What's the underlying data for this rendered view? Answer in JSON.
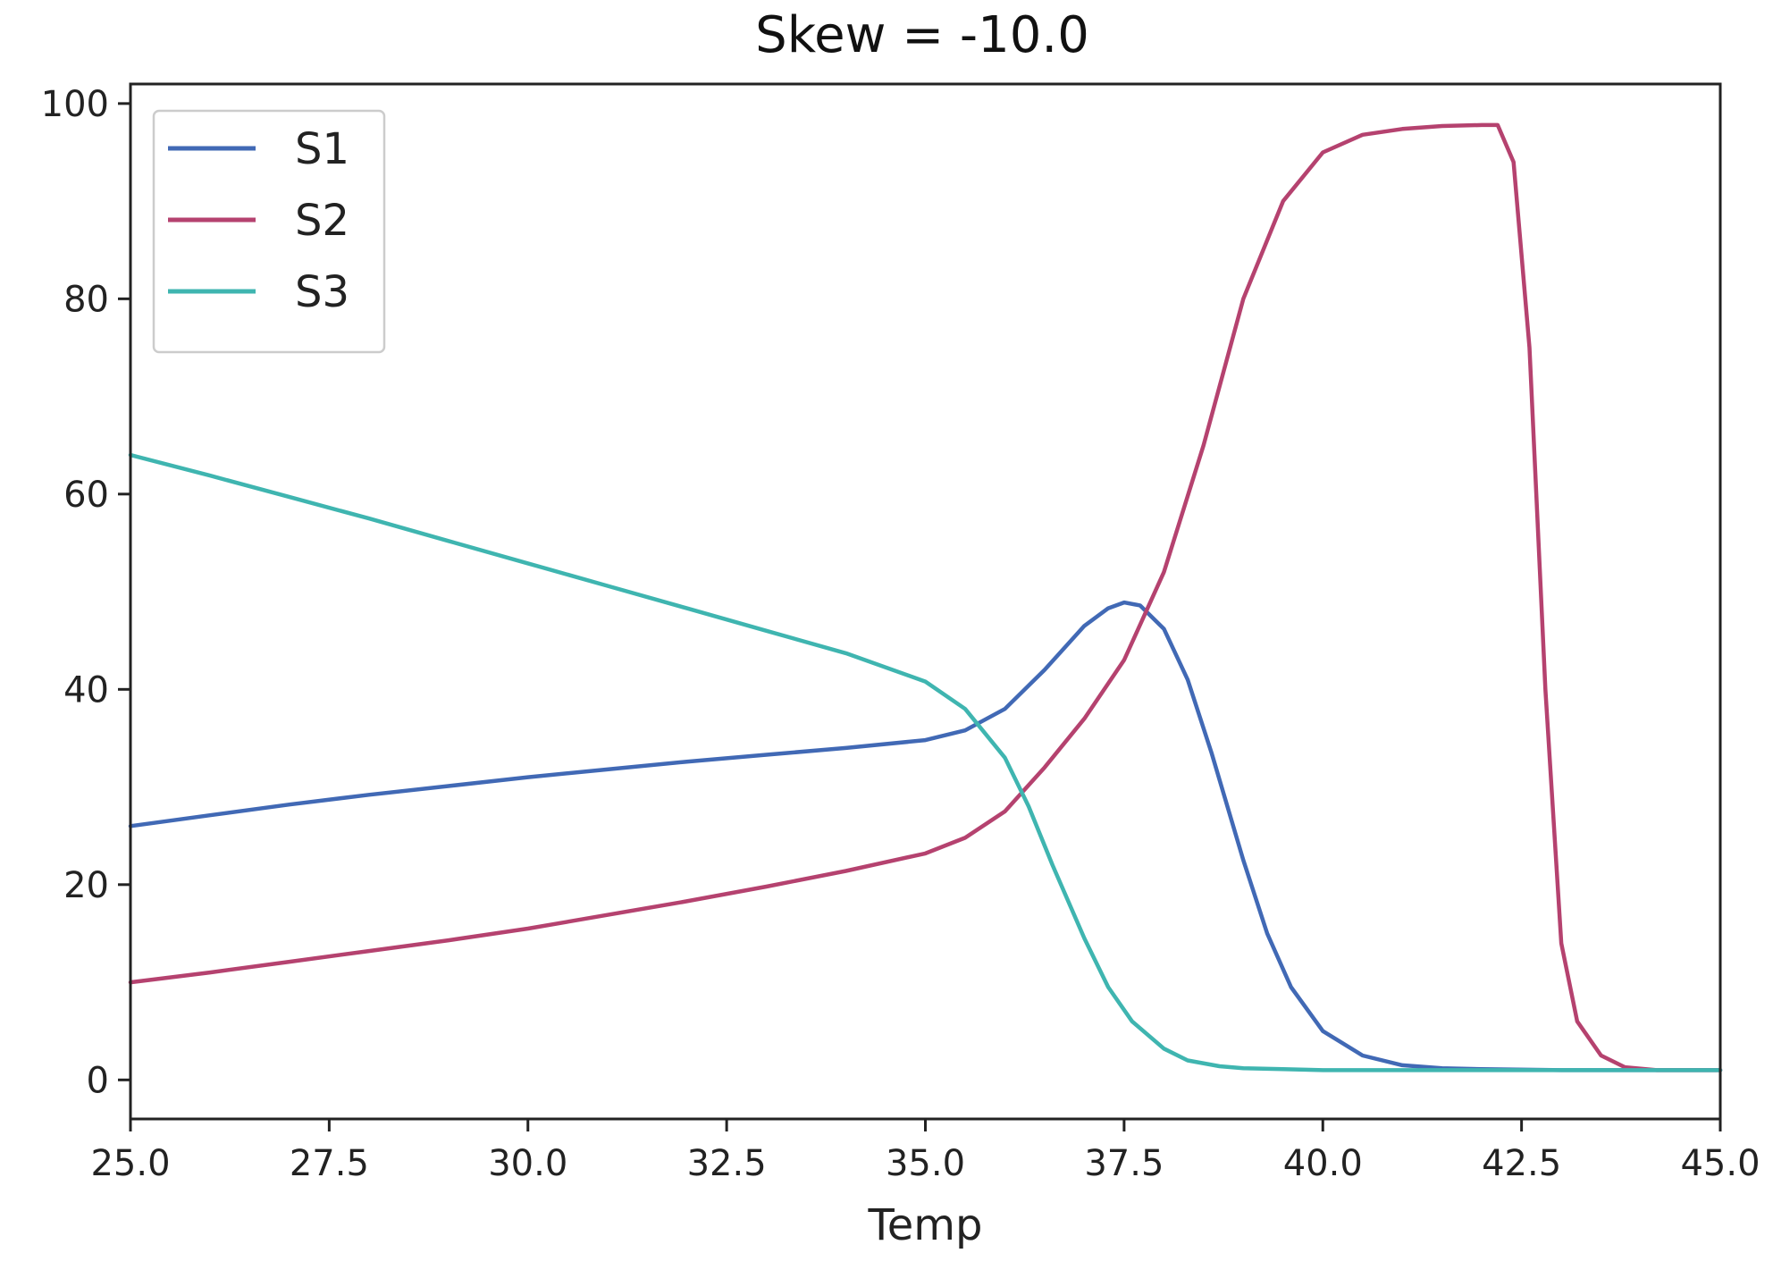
{
  "chart_data": {
    "type": "line",
    "title": "Skew = -10.0",
    "xlabel": "Temp",
    "ylabel": "",
    "xlim": [
      25.0,
      45.0
    ],
    "ylim": [
      -4,
      102
    ],
    "xticks": [
      25.0,
      27.5,
      30.0,
      32.5,
      35.0,
      37.5,
      40.0,
      42.5,
      45.0
    ],
    "xtick_labels": [
      "25.0",
      "27.5",
      "30.0",
      "32.5",
      "35.0",
      "37.5",
      "40.0",
      "42.5",
      "45.0"
    ],
    "yticks": [
      0,
      20,
      40,
      60,
      80,
      100
    ],
    "ytick_labels": [
      "0",
      "20",
      "40",
      "60",
      "80",
      "100"
    ],
    "grid": false,
    "legend_position": "top-left",
    "series": [
      {
        "name": "S1",
        "color": "#4169b5",
        "x": [
          25.0,
          26.0,
          27.0,
          28.0,
          29.0,
          30.0,
          31.0,
          32.0,
          33.0,
          34.0,
          35.0,
          35.5,
          36.0,
          36.5,
          37.0,
          37.3,
          37.5,
          37.7,
          38.0,
          38.3,
          38.6,
          39.0,
          39.3,
          39.6,
          40.0,
          40.5,
          41.0,
          41.5,
          42.0,
          43.0,
          44.0,
          45.0
        ],
        "y": [
          26.0,
          27.1,
          28.2,
          29.2,
          30.1,
          31.0,
          31.8,
          32.6,
          33.3,
          34.0,
          34.8,
          35.8,
          38.0,
          42.0,
          46.5,
          48.3,
          48.9,
          48.6,
          46.2,
          41.0,
          33.5,
          22.5,
          15.0,
          9.5,
          5.0,
          2.5,
          1.5,
          1.2,
          1.1,
          1.0,
          1.0,
          1.0
        ]
      },
      {
        "name": "S2",
        "color": "#b5426f",
        "x": [
          25.0,
          26.0,
          27.0,
          28.0,
          29.0,
          30.0,
          31.0,
          32.0,
          33.0,
          34.0,
          35.0,
          35.5,
          36.0,
          36.5,
          37.0,
          37.5,
          38.0,
          38.5,
          39.0,
          39.5,
          40.0,
          40.5,
          41.0,
          41.5,
          42.0,
          42.2,
          42.4,
          42.6,
          42.8,
          43.0,
          43.2,
          43.5,
          43.8,
          44.2,
          45.0
        ],
        "y": [
          10.0,
          11.0,
          12.1,
          13.2,
          14.3,
          15.5,
          16.9,
          18.3,
          19.8,
          21.4,
          23.2,
          24.8,
          27.5,
          32.0,
          37.0,
          43.0,
          52.0,
          65.0,
          80.0,
          90.0,
          95.0,
          96.8,
          97.4,
          97.7,
          97.8,
          97.8,
          94.0,
          75.0,
          40.0,
          14.0,
          6.0,
          2.5,
          1.3,
          1.0,
          1.0
        ]
      },
      {
        "name": "S3",
        "color": "#3fb5b0",
        "x": [
          25.0,
          26.0,
          27.0,
          28.0,
          29.0,
          30.0,
          31.0,
          32.0,
          33.0,
          34.0,
          35.0,
          35.5,
          36.0,
          36.3,
          36.6,
          37.0,
          37.3,
          37.6,
          38.0,
          38.3,
          38.7,
          39.0,
          39.5,
          40.0,
          41.0,
          42.0,
          43.0,
          44.0,
          45.0
        ],
        "y": [
          64.0,
          61.9,
          59.7,
          57.5,
          55.2,
          52.9,
          50.6,
          48.3,
          46.0,
          43.7,
          40.8,
          38.0,
          33.0,
          28.0,
          22.0,
          14.5,
          9.5,
          6.0,
          3.2,
          2.0,
          1.4,
          1.2,
          1.1,
          1.0,
          1.0,
          1.0,
          1.0,
          1.0,
          1.0
        ]
      }
    ]
  }
}
